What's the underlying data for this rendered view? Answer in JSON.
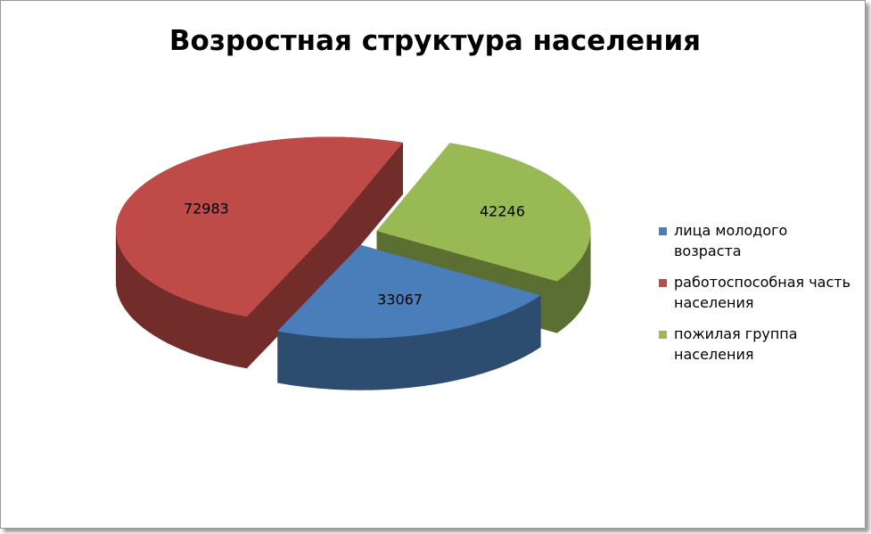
{
  "chart_data": {
    "type": "pie",
    "title": "Возростная структура населения",
    "categories": [
      "лица молодого возраста",
      "работоспособная часть населения",
      "пожилая группа населения"
    ],
    "values": [
      33067,
      72983,
      42246
    ],
    "colors": [
      "#4a7ebb",
      "#be4b48",
      "#98b954"
    ],
    "legend": "right"
  }
}
